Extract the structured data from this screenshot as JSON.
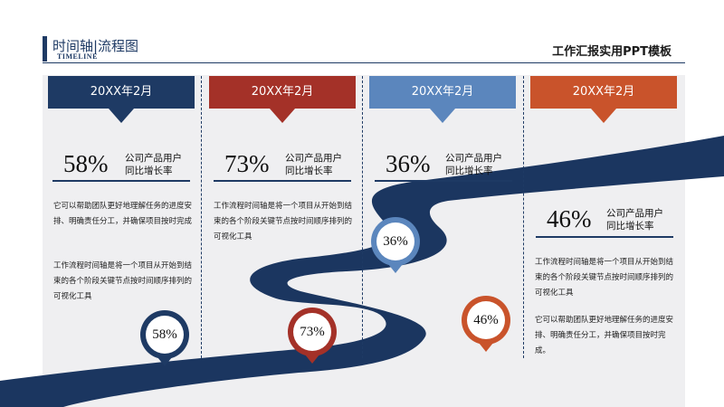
{
  "header": {
    "title": "时间轴|流程图",
    "subtitle": "TIMELINE",
    "right_title": "工作汇报实用PPT模板"
  },
  "cards": [
    {
      "date": "20XX年2月",
      "color": "#1e3a64",
      "percent": "58%",
      "label_line1": "公司产品用户",
      "label_line2": "同比增长率",
      "text1": "它可以帮助团队更好地理解任务的进度安排、明确责任分工，并确保项目按时完成",
      "text2": "工作流程时间轴是将一个项目从开始到结束的各个阶段关键节点按时间顺序排列的可视化工具"
    },
    {
      "date": "20XX年2月",
      "color": "#a43128",
      "percent": "73%",
      "label_line1": "公司产品用户",
      "label_line2": "同比增长率",
      "text1": "工作流程时间轴是将一个项目从开始到结束的各个阶段关键节点按时间顺序排列的可视化工具"
    },
    {
      "date": "20XX年2月",
      "color": "#5b86bd",
      "percent": "36%",
      "label_line1": "公司产品用户",
      "label_line2": "同比增长率"
    },
    {
      "date": "20XX年2月",
      "color": "#c9532b",
      "percent": "46%",
      "label_line1": "公司产品用户",
      "label_line2": "同比增长率",
      "text1": "工作流程时间轴是将一个项目从开始到结束的各个阶段关键节点按时间顺序排列的可视化工具",
      "text2": "它可以帮助团队更好地理解任务的进度安排、明确责任分工，并确保项目按时完成。"
    }
  ],
  "pins": [
    {
      "value": "58%",
      "color": "#1e3a64"
    },
    {
      "value": "73%",
      "color": "#a43128"
    },
    {
      "value": "36%",
      "color": "#5b86bd"
    },
    {
      "value": "46%",
      "color": "#c9532b"
    }
  ]
}
